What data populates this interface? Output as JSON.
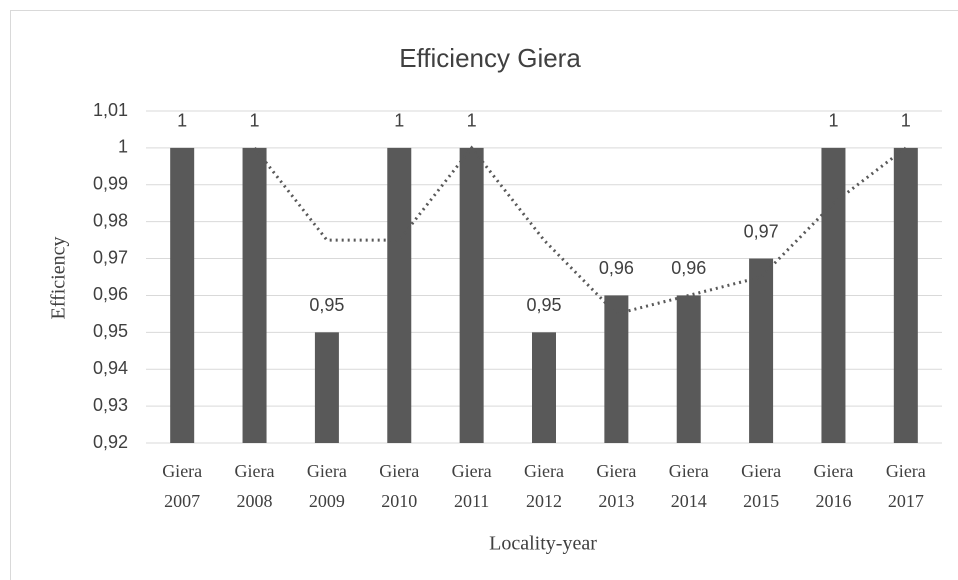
{
  "chart_data": {
    "type": "bar",
    "title": "Efficiency Giera",
    "x_label": "Locality-year",
    "y_label": "Efficiency",
    "categories": [
      "Giera 2007",
      "Giera 2008",
      "Giera 2009",
      "Giera 2010",
      "Giera 2011",
      "Giera 2012",
      "Giera 2013",
      "Giera 2014",
      "Giera 2015",
      "Giera 2016",
      "Giera 2017"
    ],
    "series": [
      {
        "type": "bar",
        "color": "#595959",
        "values": [
          1,
          1,
          0.95,
          1,
          1,
          0.95,
          0.96,
          0.96,
          0.97,
          1,
          1
        ],
        "value_labels": [
          "1",
          "1",
          "0,95",
          "1",
          "1",
          "0,95",
          "0,96",
          "0,96",
          "0,97",
          "1",
          "1"
        ]
      },
      {
        "type": "line",
        "color": "#595959",
        "dash": "dotted",
        "values": [
          null,
          1,
          0.975,
          0.975,
          1,
          0.975,
          0.955,
          0.96,
          0.965,
          0.985,
          1
        ]
      }
    ],
    "ylim": [
      0.92,
      1.01
    ],
    "yticks": [
      {
        "value": 0.92,
        "label": "0,92"
      },
      {
        "value": 0.93,
        "label": "0,93"
      },
      {
        "value": 0.94,
        "label": "0,94"
      },
      {
        "value": 0.95,
        "label": "0,95"
      },
      {
        "value": 0.96,
        "label": "0,96"
      },
      {
        "value": 0.97,
        "label": "0,97"
      },
      {
        "value": 0.98,
        "label": "0,98"
      },
      {
        "value": 0.99,
        "label": "0,99"
      },
      1,
      {
        "value": 1.01,
        "label": "1,01"
      }
    ],
    "grid": true
  }
}
